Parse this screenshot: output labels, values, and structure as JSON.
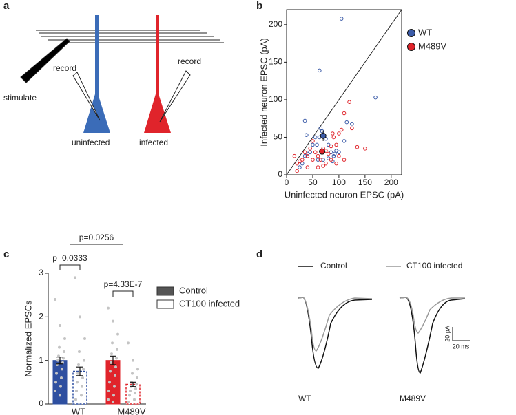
{
  "panels": [
    "a",
    "b",
    "c",
    "d"
  ],
  "diagram": {
    "stimulate": "stimulate",
    "record_left": "record",
    "record_right": "record",
    "uninfected": "uninfected",
    "infected": "infected"
  },
  "chart_data": [
    {
      "type": "scatter",
      "xlabel": "Uninfected neuron EPSC (pA)",
      "ylabel": "Infected neuron EPSC (pA)",
      "xlim": [
        0,
        220
      ],
      "ylim": [
        0,
        220
      ],
      "xticks": [
        0,
        50,
        100,
        150,
        200
      ],
      "yticks": [
        0,
        50,
        100,
        150,
        200
      ],
      "legend": "right",
      "series": [
        {
          "name": "WT",
          "color": "#3b5ba8",
          "x": [
            105,
            63,
            170,
            35,
            115,
            125,
            38,
            55,
            65,
            68,
            75,
            80,
            85,
            90,
            95,
            100,
            110,
            45,
            35,
            30,
            25,
            60,
            70,
            80,
            88,
            92,
            40,
            50,
            58,
            63
          ],
          "y": [
            208,
            139,
            103,
            72,
            70,
            68,
            53,
            50,
            62,
            58,
            48,
            40,
            30,
            25,
            32,
            30,
            45,
            30,
            25,
            15,
            10,
            20,
            20,
            22,
            18,
            28,
            28,
            40,
            40,
            50
          ],
          "mean": {
            "x": 70,
            "y": 52,
            "xerr": 7,
            "yerr": 7
          }
        },
        {
          "name": "M489V",
          "color": "#e0242b",
          "x": [
            120,
            125,
            110,
            135,
            150,
            105,
            100,
            95,
            90,
            85,
            80,
            75,
            70,
            65,
            60,
            55,
            50,
            45,
            40,
            35,
            30,
            20,
            15,
            20,
            25,
            40,
            60,
            70,
            88,
            100,
            110,
            85,
            95,
            75,
            50
          ],
          "y": [
            97,
            62,
            82,
            37,
            35,
            60,
            55,
            40,
            50,
            38,
            28,
            15,
            12,
            20,
            25,
            30,
            20,
            35,
            25,
            30,
            20,
            15,
            25,
            5,
            18,
            10,
            10,
            35,
            55,
            25,
            20,
            20,
            15,
            32,
            45
          ],
          "mean": {
            "x": 68,
            "y": 31,
            "xerr": 6,
            "yerr": 4
          }
        }
      ]
    },
    {
      "type": "bar",
      "ylabel": "Normalized EPSCs",
      "ylim": [
        0,
        3
      ],
      "yticks": [
        0,
        1,
        2,
        3
      ],
      "categories": [
        "WT",
        "M489V"
      ],
      "category_colors": [
        "#2e4fa0",
        "#e0242b"
      ],
      "series": [
        {
          "name": "Control",
          "color": "#555555",
          "values": [
            1.0,
            1.0
          ],
          "errors": [
            0.08,
            0.1
          ],
          "points": [
            [
              2.4,
              1.8,
              1.5,
              1.3,
              1.2,
              1.1,
              1.05,
              1.0,
              0.95,
              0.9,
              0.8,
              0.7,
              0.6,
              0.5,
              0.4,
              0.3,
              0.2
            ],
            [
              2.2,
              1.9,
              1.6,
              1.4,
              1.25,
              1.15,
              1.05,
              0.95,
              0.85,
              0.75,
              0.65,
              0.5,
              0.4,
              0.3,
              0.2,
              0.1,
              0.05
            ]
          ]
        },
        {
          "name": "CT100 infected",
          "color": "#ffffff",
          "values": [
            0.75,
            0.45
          ],
          "errors": [
            0.1,
            0.05
          ],
          "points": [
            [
              2.9,
              2.0,
              1.5,
              1.2,
              1.0,
              0.9,
              0.8,
              0.7,
              0.6,
              0.5,
              0.4,
              0.3,
              0.2,
              0.1
            ],
            [
              1.4,
              1.0,
              0.8,
              0.7,
              0.6,
              0.5,
              0.45,
              0.4,
              0.35,
              0.3,
              0.25,
              0.2,
              0.1,
              0.05
            ]
          ]
        }
      ],
      "annotations": [
        "p=0.0333",
        "p=0.0256",
        "p=4.33E-7"
      ]
    }
  ],
  "traces": {
    "legend": [
      "Control",
      "CT100 infected"
    ],
    "labels": [
      "WT",
      "M489V"
    ],
    "scale_y": "20 pA",
    "scale_x": "20 ms"
  }
}
